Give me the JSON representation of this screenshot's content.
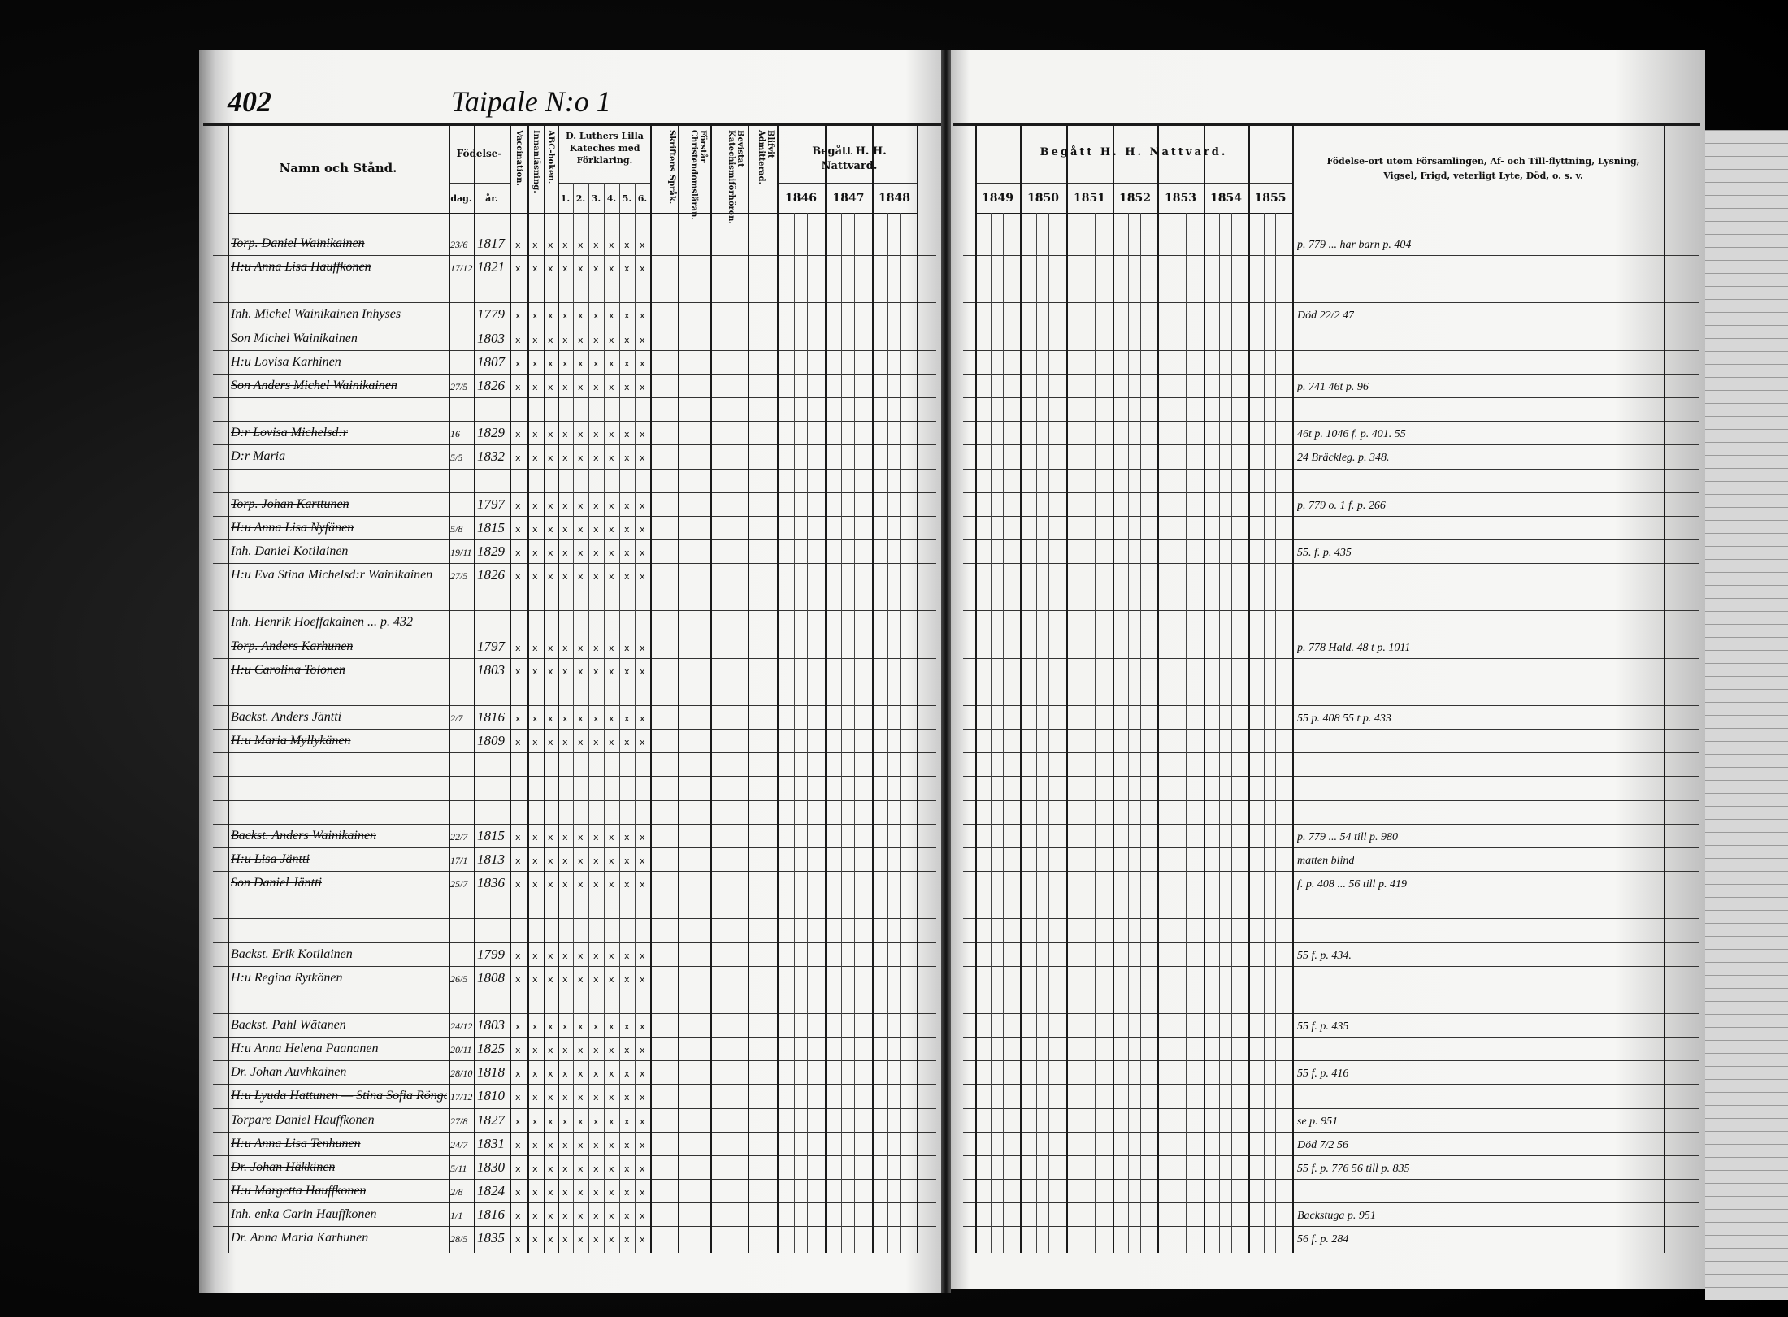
{
  "page_number": "402",
  "village_title": "Taipale N:o 1",
  "left_headers": {
    "name": "Namn och Stånd.",
    "birth": "Födelse-",
    "birth_day": "dag.",
    "birth_year": "år.",
    "vaccination": "Vaccination.",
    "reading": "Innanläsning.",
    "abc": "ABC-boken.",
    "catechism": "D. Luthers Lilla Kateches med Förklaring.",
    "catechism_parts": [
      "1.",
      "2.",
      "3.",
      "4.",
      "5.",
      "6."
    ],
    "scripture": "Skriftens Språk.",
    "christianity": "Förstår Christendomsläran.",
    "attended": "Bevistat Katechismiförhören.",
    "admitted": "Blifvit Admitterad.",
    "communion": "Begått H. H. Nattvard.",
    "years": [
      "1846",
      "1847",
      "1848"
    ]
  },
  "right_headers": {
    "communion": "Begått H. H. Nattvard.",
    "years": [
      "1849",
      "1850",
      "1851",
      "1852",
      "1853",
      "1854",
      "1855"
    ],
    "remarks": "Födelse-ort utom Församlingen, Af- och Till-flyttning, Lysning, Vigsel, Frigd, veterligt Lyte, Död, o. s. v."
  },
  "rows": [
    {
      "name": "Torp. Daniel Wainikainen",
      "day": "23/6",
      "year": "1817",
      "remark": "p. 779 ... har barn p. 404",
      "struck": true
    },
    {
      "name": "H:u Anna Lisa Hauffkonen",
      "day": "17/12",
      "year": "1821",
      "remark": "",
      "struck": true
    },
    {
      "name": "",
      "day": "",
      "year": "",
      "remark": ""
    },
    {
      "name": "Inh. Michel Wainikainen Inhyses",
      "day": "",
      "year": "1779",
      "remark": "Död 22/2 47",
      "struck": true
    },
    {
      "name": "Son Michel Wainikainen",
      "day": "",
      "year": "1803",
      "remark": ""
    },
    {
      "name": "H:u Lovisa Karhinen",
      "day": "",
      "year": "1807",
      "remark": ""
    },
    {
      "name": "Son Anders Michel Wainikainen",
      "day": "27/5",
      "year": "1826",
      "remark": "p. 741 46t p. 96",
      "struck": true
    },
    {
      "name": "",
      "day": "",
      "year": "",
      "remark": ""
    },
    {
      "name": "D:r Lovisa Michelsd:r",
      "day": "16",
      "year": "1829",
      "remark": "46t p. 1046 f. p. 401. 55",
      "struck": true
    },
    {
      "name": "D:r Maria",
      "day": "5/5",
      "year": "1832",
      "remark": "24 Bräckleg. p. 348."
    },
    {
      "name": "",
      "day": "",
      "year": "",
      "remark": ""
    },
    {
      "name": "Torp. Johan Karttunen",
      "day": "",
      "year": "1797",
      "remark": "p. 779 o. 1 f. p. 266",
      "struck": true
    },
    {
      "name": "H:u Anna Lisa Nyfänen",
      "day": "5/8",
      "year": "1815",
      "remark": "",
      "struck": true
    },
    {
      "name": "Inh. Daniel Kotilainen",
      "day": "19/11",
      "year": "1829",
      "remark": "55. f. p. 435"
    },
    {
      "name": "H:u Eva Stina Michelsd:r Wainikainen",
      "day": "27/5",
      "year": "1826",
      "remark": ""
    },
    {
      "name": "",
      "day": "",
      "year": "",
      "remark": ""
    },
    {
      "name": "Inh. Henrik Hoeffakainen ... p. 432",
      "day": "",
      "year": "",
      "remark": "",
      "struck": true
    },
    {
      "name": "Torp. Anders Karhunen",
      "day": "",
      "year": "1797",
      "remark": "p. 778 Hald. 48 t p. 1011",
      "struck": true
    },
    {
      "name": "H:u Carolina Tolonen",
      "day": "",
      "year": "1803",
      "remark": "",
      "struck": true
    },
    {
      "name": "",
      "day": "",
      "year": "",
      "remark": ""
    },
    {
      "name": "Backst. Anders Jäntti",
      "day": "2/7",
      "year": "1816",
      "remark": "55 p. 408 55 t p. 433",
      "struck": true
    },
    {
      "name": "H:u Maria Myllykänen",
      "day": "",
      "year": "1809",
      "remark": "",
      "struck": true
    },
    {
      "name": "",
      "day": "",
      "year": "",
      "remark": ""
    },
    {
      "name": "",
      "day": "",
      "year": "",
      "remark": ""
    },
    {
      "name": "",
      "day": "",
      "year": "",
      "remark": ""
    },
    {
      "name": "Backst. Anders Wainikainen",
      "day": "22/7",
      "year": "1815",
      "remark": "p. 779 ... 54 till p. 980",
      "struck": true
    },
    {
      "name": "H:u Lisa Jäntti",
      "day": "17/1",
      "year": "1813",
      "remark": "matten blind",
      "struck": true
    },
    {
      "name": "Son Daniel Jäntti",
      "day": "25/7",
      "year": "1836",
      "remark": "f. p. 408 ... 56 till p. 419",
      "struck": true
    },
    {
      "name": "",
      "day": "",
      "year": "",
      "remark": ""
    },
    {
      "name": "",
      "day": "",
      "year": "",
      "remark": ""
    },
    {
      "name": "Backst. Erik Kotilainen",
      "day": "",
      "year": "1799",
      "remark": "55 f. p. 434."
    },
    {
      "name": "H:u Regina Rytkönen",
      "day": "26/5",
      "year": "1808",
      "remark": ""
    },
    {
      "name": "",
      "day": "",
      "year": "",
      "remark": ""
    },
    {
      "name": "Backst. Pahl Wätanen",
      "day": "24/12",
      "year": "1803",
      "remark": "55 f. p. 435"
    },
    {
      "name": "H:u Anna Helena Paananen",
      "day": "20/11",
      "year": "1825",
      "remark": ""
    },
    {
      "name": "Dr. Johan Auvhkainen",
      "day": "28/10",
      "year": "1818",
      "remark": "55 f. p. 416"
    },
    {
      "name": "H:u Lyuda Hattunen — Stina Sofia Rönga",
      "day": "17/12",
      "year": "1810",
      "remark": "",
      "struck": true
    },
    {
      "name": "Torpare Daniel Hauffkonen",
      "day": "27/8",
      "year": "1827",
      "remark": "se p. 951",
      "struck": true
    },
    {
      "name": "H:u Anna Lisa Tenhunen",
      "day": "24/7",
      "year": "1831",
      "remark": "Död 7/2 56",
      "struck": true
    },
    {
      "name": "Dr. Johan Häkkinen",
      "day": "5/11",
      "year": "1830",
      "remark": "55 f. p. 776 56 till p. 835",
      "struck": true
    },
    {
      "name": "H:u Margetta Hauffkonen",
      "day": "2/8",
      "year": "1824",
      "remark": "",
      "struck": true
    },
    {
      "name": "Inh. enka Carin Hauffkonen",
      "day": "1/1",
      "year": "1816",
      "remark": "Backstuga p. 951"
    },
    {
      "name": "Dr. Anna Maria Karhunen",
      "day": "28/5",
      "year": "1835",
      "remark": "56 f. p. 284"
    }
  ],
  "catechism_mark": "x",
  "colors": {
    "background": "#000000",
    "paper": "#f3f3f1",
    "ink": "#111111"
  }
}
